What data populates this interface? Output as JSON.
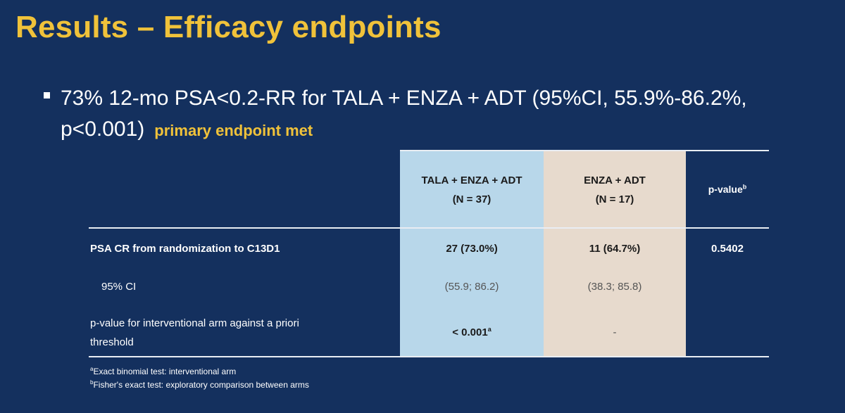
{
  "slide": {
    "title": "Results – Efficacy endpoints",
    "bullet": {
      "line1": "73% 12-mo PSA<0.2-RR for TALA + ENZA + ADT (95%CI, 55.9%-86.2%,",
      "line2": "p<0.001)",
      "highlight": "primary endpoint met"
    }
  },
  "table": {
    "columns": {
      "tala": {
        "name": "TALA + ENZA + ADT",
        "n": "(N = 37)"
      },
      "enza": {
        "name": "ENZA + ADT",
        "n": "(N = 17)"
      },
      "pvalue": {
        "label": "p-value",
        "sup": "b"
      }
    },
    "rows": {
      "psa_cr": {
        "label": "PSA CR from randomization to C13D1",
        "tala": "27 (73.0%)",
        "enza": "11 (64.7%)",
        "pvalue": "0.5402"
      },
      "ci": {
        "label": "95% CI",
        "tala": "(55.9; 86.2)",
        "enza": "(38.3; 85.8)"
      },
      "p_interventional": {
        "label_line1": "p-value for interventional arm against a priori",
        "label_line2": "threshold",
        "tala": "< 0.001",
        "tala_sup": "a",
        "enza": "-"
      }
    }
  },
  "footnotes": {
    "a": {
      "sup": "a",
      "text": "Exact binomial test: interventional arm"
    },
    "b": {
      "sup": "b",
      "text": "Fisher's exact test: exploratory comparison between arms"
    }
  },
  "colors": {
    "background": "#14305e",
    "title": "#f0c23a",
    "tala_column": "#b8d7ea",
    "enza_column": "#e7dacd"
  }
}
